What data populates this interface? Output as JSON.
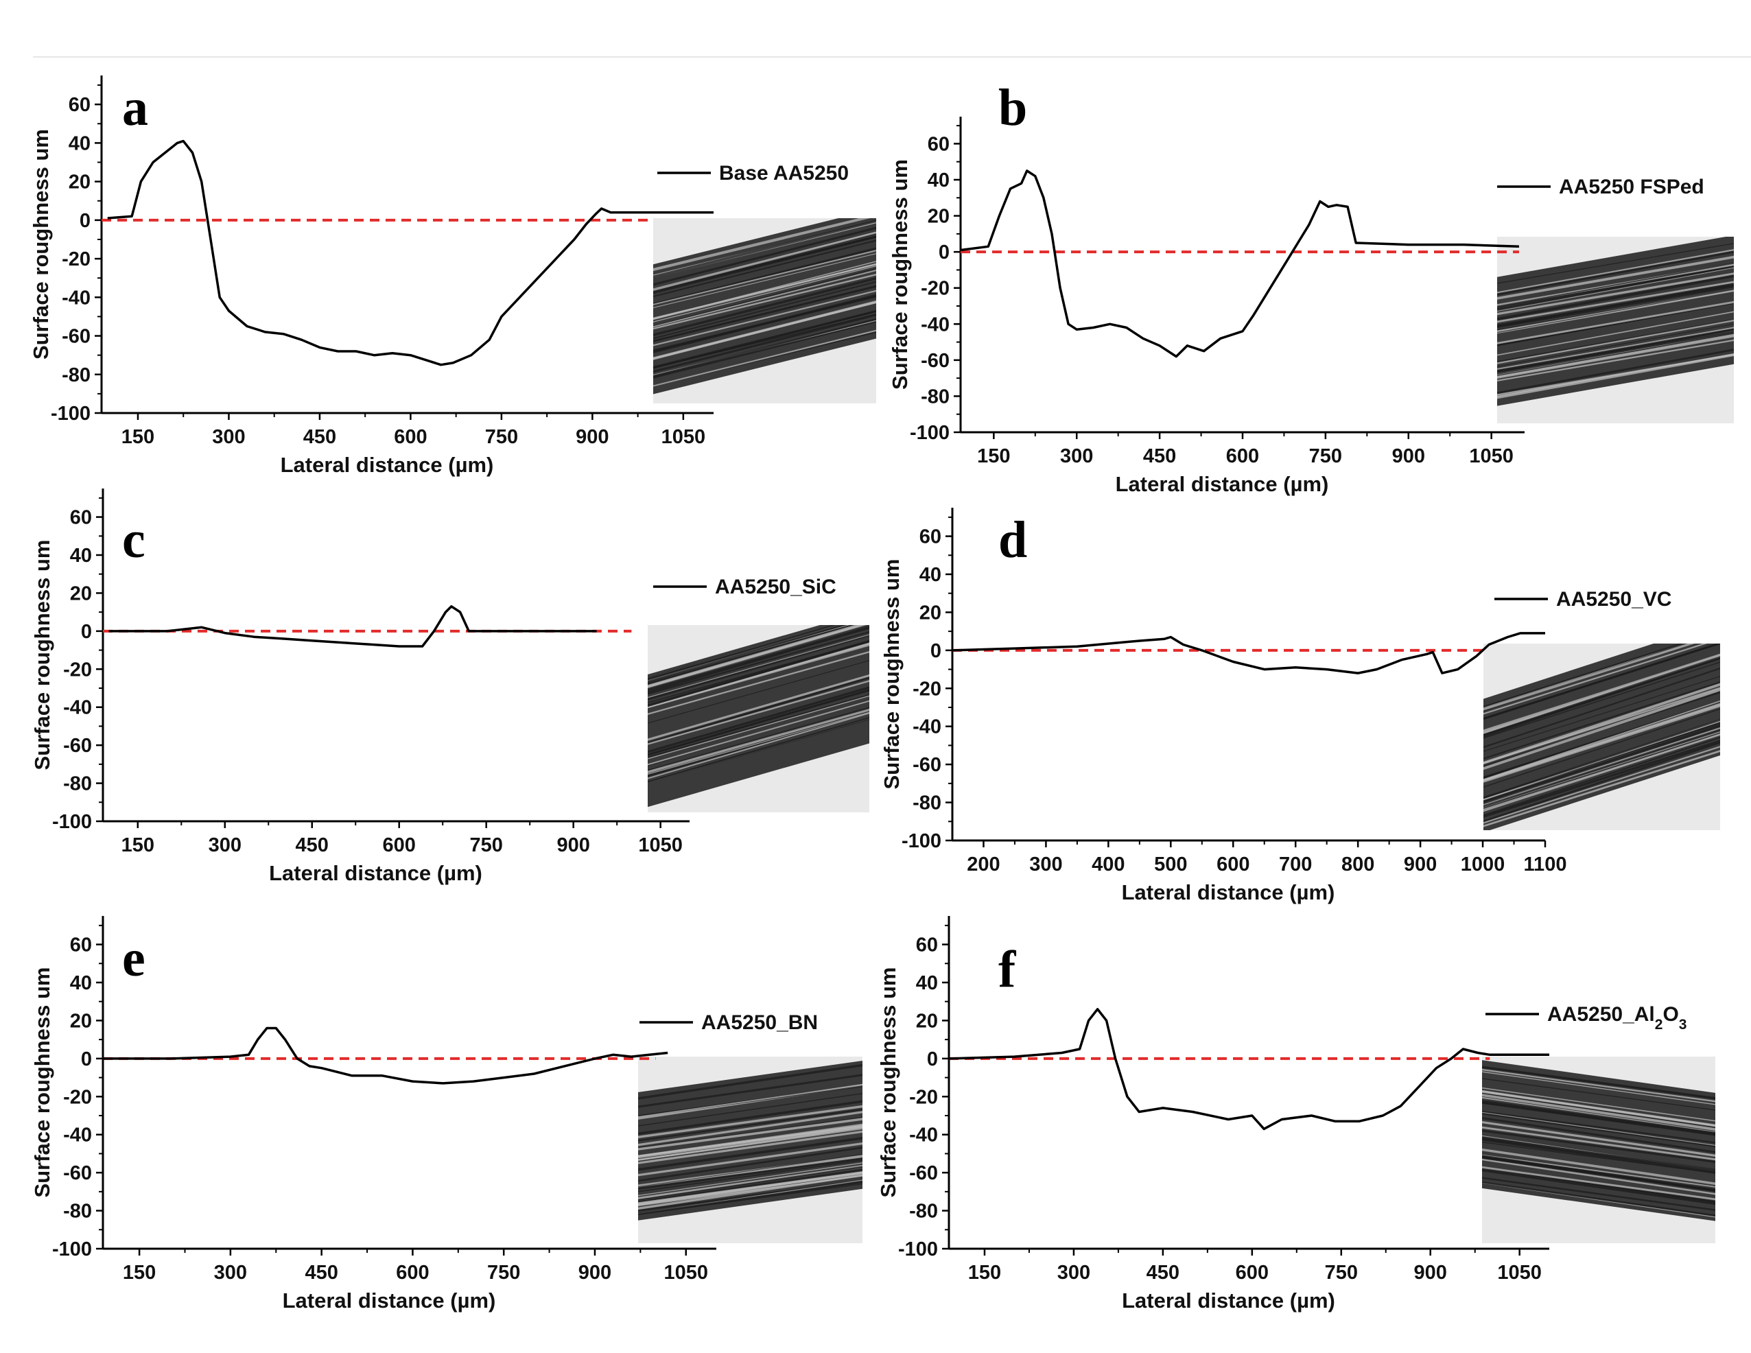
{
  "colors": {
    "line": "#000000",
    "zero_reference": "#e32b2b",
    "micrograph_dark": "#1c1c1c",
    "micrograph_light": "#e9e9e9"
  },
  "chart_data": [
    {
      "type": "line",
      "panel": "a",
      "series": [
        {
          "name": "Base AA5250",
          "points": [
            [
              100,
              1
            ],
            [
              140,
              2
            ],
            [
              155,
              20
            ],
            [
              175,
              30
            ],
            [
              195,
              35
            ],
            [
              215,
              40
            ],
            [
              225,
              41
            ],
            [
              240,
              35
            ],
            [
              255,
              20
            ],
            [
              270,
              -10
            ],
            [
              285,
              -40
            ],
            [
              300,
              -47
            ],
            [
              330,
              -55
            ],
            [
              360,
              -58
            ],
            [
              390,
              -59
            ],
            [
              420,
              -62
            ],
            [
              450,
              -66
            ],
            [
              480,
              -68
            ],
            [
              510,
              -68
            ],
            [
              540,
              -70
            ],
            [
              570,
              -69
            ],
            [
              600,
              -70
            ],
            [
              630,
              -73
            ],
            [
              650,
              -75
            ],
            [
              670,
              -74
            ],
            [
              700,
              -70
            ],
            [
              730,
              -62
            ],
            [
              750,
              -50
            ],
            [
              780,
              -40
            ],
            [
              810,
              -30
            ],
            [
              840,
              -20
            ],
            [
              870,
              -10
            ],
            [
              890,
              -2
            ],
            [
              905,
              3
            ],
            [
              915,
              6
            ],
            [
              930,
              4
            ],
            [
              1000,
              4
            ],
            [
              1100,
              4
            ]
          ]
        },
        {
          "name": "",
          "points": [
            [
              90,
              0
            ],
            [
              1000,
              0
            ]
          ]
        }
      ],
      "xlabel": "Lateral distance (µm)",
      "ylabel": "Surface roughness um",
      "xticks": [
        150,
        300,
        450,
        600,
        750,
        900,
        1050
      ],
      "yticks": [
        -100,
        -80,
        -60,
        -40,
        -20,
        0,
        20,
        40,
        60
      ],
      "xlim": [
        90,
        1100
      ],
      "ylim": [
        -100,
        75
      ]
    },
    {
      "type": "line",
      "panel": "b",
      "series": [
        {
          "name": "AA5250 FSPed",
          "points": [
            [
              90,
              1
            ],
            [
              140,
              3
            ],
            [
              160,
              20
            ],
            [
              180,
              35
            ],
            [
              200,
              38
            ],
            [
              210,
              45
            ],
            [
              225,
              42
            ],
            [
              240,
              30
            ],
            [
              255,
              10
            ],
            [
              270,
              -20
            ],
            [
              285,
              -40
            ],
            [
              300,
              -43
            ],
            [
              330,
              -42
            ],
            [
              360,
              -40
            ],
            [
              390,
              -42
            ],
            [
              420,
              -48
            ],
            [
              450,
              -52
            ],
            [
              480,
              -58
            ],
            [
              500,
              -52
            ],
            [
              530,
              -55
            ],
            [
              560,
              -48
            ],
            [
              600,
              -44
            ],
            [
              620,
              -35
            ],
            [
              650,
              -20
            ],
            [
              680,
              -5
            ],
            [
              700,
              5
            ],
            [
              720,
              15
            ],
            [
              740,
              28
            ],
            [
              755,
              25
            ],
            [
              770,
              26
            ],
            [
              790,
              25
            ],
            [
              805,
              5
            ],
            [
              900,
              4
            ],
            [
              1000,
              4
            ],
            [
              1100,
              3
            ]
          ]
        },
        {
          "name": "",
          "points": [
            [
              90,
              0
            ],
            [
              1100,
              0
            ]
          ]
        }
      ],
      "xlabel": "Lateral distance (µm)",
      "ylabel": "Surface roughness um",
      "xticks": [
        150,
        300,
        450,
        600,
        750,
        900,
        1050
      ],
      "yticks": [
        -100,
        -80,
        -60,
        -40,
        -20,
        0,
        20,
        40,
        60
      ],
      "xlim": [
        90,
        1110
      ],
      "ylim": [
        -100,
        75
      ]
    },
    {
      "type": "line",
      "panel": "c",
      "series": [
        {
          "name": "AA5250_SiC",
          "points": [
            [
              100,
              0
            ],
            [
              200,
              0
            ],
            [
              260,
              2
            ],
            [
              300,
              -1
            ],
            [
              350,
              -3
            ],
            [
              400,
              -4
            ],
            [
              450,
              -5
            ],
            [
              500,
              -6
            ],
            [
              550,
              -7
            ],
            [
              600,
              -8
            ],
            [
              640,
              -8
            ],
            [
              660,
              0
            ],
            [
              680,
              10
            ],
            [
              690,
              13
            ],
            [
              705,
              10
            ],
            [
              720,
              0
            ],
            [
              800,
              0
            ],
            [
              900,
              0
            ],
            [
              940,
              0
            ]
          ]
        },
        {
          "name": "",
          "points": [
            [
              90,
              0
            ],
            [
              1000,
              0
            ]
          ]
        }
      ],
      "xlabel": "Lateral distance (µm)",
      "ylabel": "Surface roughness um",
      "xticks": [
        150,
        300,
        450,
        600,
        750,
        900,
        1050
      ],
      "yticks": [
        -100,
        -80,
        -60,
        -40,
        -20,
        0,
        20,
        40,
        60
      ],
      "xlim": [
        90,
        1100
      ],
      "ylim": [
        -100,
        75
      ]
    },
    {
      "type": "line",
      "panel": "d",
      "series": [
        {
          "name": "AA5250_VC",
          "points": [
            [
              150,
              0
            ],
            [
              250,
              1
            ],
            [
              350,
              2
            ],
            [
              450,
              5
            ],
            [
              490,
              6
            ],
            [
              500,
              7
            ],
            [
              520,
              3
            ],
            [
              550,
              0
            ],
            [
              600,
              -6
            ],
            [
              650,
              -10
            ],
            [
              700,
              -9
            ],
            [
              750,
              -10
            ],
            [
              800,
              -12
            ],
            [
              830,
              -10
            ],
            [
              870,
              -5
            ],
            [
              910,
              -2
            ],
            [
              920,
              -1
            ],
            [
              935,
              -12
            ],
            [
              960,
              -10
            ],
            [
              990,
              -3
            ],
            [
              1010,
              3
            ],
            [
              1040,
              7
            ],
            [
              1060,
              9
            ],
            [
              1100,
              9
            ]
          ]
        },
        {
          "name": "",
          "points": [
            [
              150,
              0
            ],
            [
              1000,
              0
            ]
          ]
        }
      ],
      "xlabel": "Lateral distance (µm)",
      "ylabel": "Surface roughness um",
      "xticks": [
        200,
        300,
        400,
        500,
        600,
        700,
        800,
        900,
        1000,
        1100
      ],
      "yticks": [
        -100,
        -80,
        -60,
        -40,
        -20,
        0,
        20,
        40,
        60
      ],
      "xlim": [
        150,
        1100
      ],
      "ylim": [
        -100,
        75
      ]
    },
    {
      "type": "line",
      "panel": "e",
      "series": [
        {
          "name": "AA5250_BN",
          "points": [
            [
              90,
              0
            ],
            [
              200,
              0
            ],
            [
              300,
              1
            ],
            [
              330,
              2
            ],
            [
              345,
              10
            ],
            [
              360,
              16
            ],
            [
              375,
              16
            ],
            [
              390,
              10
            ],
            [
              410,
              0
            ],
            [
              430,
              -4
            ],
            [
              450,
              -5
            ],
            [
              500,
              -9
            ],
            [
              550,
              -9
            ],
            [
              600,
              -12
            ],
            [
              650,
              -13
            ],
            [
              700,
              -12
            ],
            [
              750,
              -10
            ],
            [
              800,
              -8
            ],
            [
              850,
              -4
            ],
            [
              900,
              0
            ],
            [
              930,
              2
            ],
            [
              960,
              1
            ],
            [
              990,
              2
            ],
            [
              1020,
              3
            ]
          ]
        },
        {
          "name": "",
          "points": [
            [
              90,
              0
            ],
            [
              1000,
              0
            ]
          ]
        }
      ],
      "xlabel": "Lateral distance (µm)",
      "ylabel": "Surface roughness um",
      "xticks": [
        150,
        300,
        450,
        600,
        750,
        900,
        1050
      ],
      "yticks": [
        -100,
        -80,
        -60,
        -40,
        -20,
        0,
        20,
        40,
        60
      ],
      "xlim": [
        90,
        1100
      ],
      "ylim": [
        -100,
        75
      ]
    },
    {
      "type": "line",
      "panel": "f",
      "series": [
        {
          "name": "AA5250_Al2O3",
          "points": [
            [
              90,
              0
            ],
            [
              200,
              1
            ],
            [
              280,
              3
            ],
            [
              310,
              5
            ],
            [
              325,
              20
            ],
            [
              340,
              26
            ],
            [
              355,
              20
            ],
            [
              370,
              0
            ],
            [
              390,
              -20
            ],
            [
              410,
              -28
            ],
            [
              450,
              -26
            ],
            [
              500,
              -28
            ],
            [
              560,
              -32
            ],
            [
              600,
              -30
            ],
            [
              620,
              -37
            ],
            [
              650,
              -32
            ],
            [
              700,
              -30
            ],
            [
              740,
              -33
            ],
            [
              780,
              -33
            ],
            [
              820,
              -30
            ],
            [
              850,
              -25
            ],
            [
              880,
              -15
            ],
            [
              910,
              -5
            ],
            [
              935,
              0
            ],
            [
              955,
              5
            ],
            [
              980,
              3
            ],
            [
              1000,
              2
            ],
            [
              1100,
              2
            ]
          ]
        },
        {
          "name": "",
          "points": [
            [
              90,
              0
            ],
            [
              1000,
              0
            ]
          ]
        }
      ],
      "xlabel": "Lateral distance (µm)",
      "ylabel": "Surface roughness um",
      "xticks": [
        150,
        300,
        450,
        600,
        750,
        900,
        1050
      ],
      "yticks": [
        -100,
        -80,
        -60,
        -40,
        -20,
        0,
        20,
        40,
        60
      ],
      "xlim": [
        90,
        1100
      ],
      "ylim": [
        -100,
        75
      ]
    }
  ]
}
